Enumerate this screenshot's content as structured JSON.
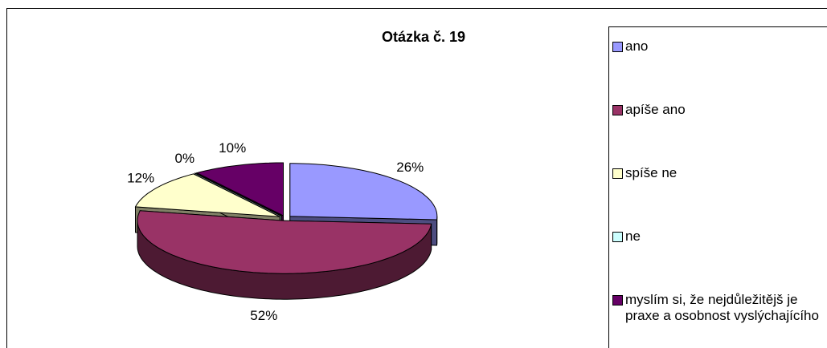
{
  "chart_data": {
    "type": "pie",
    "title": "Otázka č. 19",
    "categories": [
      "ano",
      "apíše ano",
      "spíše ne",
      "ne",
      "myslím si, že nejdůležitějš je praxe a osobnost vyslýchajícího"
    ],
    "values": [
      26,
      52,
      12,
      0,
      10
    ],
    "value_labels": [
      "26%",
      "52%",
      "12%",
      "0%",
      "10%"
    ],
    "colors": [
      "#9999ff",
      "#993366",
      "#ffffcc",
      "#ccffff",
      "#660066"
    ],
    "legend": "right"
  }
}
